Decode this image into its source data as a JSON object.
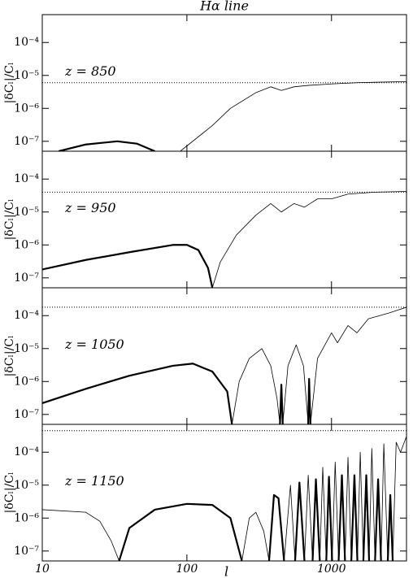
{
  "chart_data": [
    {
      "type": "line",
      "title": "Hα line",
      "annotation": "z = 850",
      "y_label": "|δCₗ|/Cₗ",
      "xlog": true,
      "ylog": true,
      "xlim": [
        10,
        3300
      ],
      "ylim": [
        5e-08,
        0.0007
      ],
      "xticks": [
        10,
        100,
        1000
      ],
      "yticks": [
        {
          "value": 1e-07,
          "label": "10⁻⁷"
        },
        {
          "value": 1e-06,
          "label": "10⁻⁶"
        },
        {
          "value": 1e-05,
          "label": "10⁻⁵"
        },
        {
          "value": 0.0001,
          "label": "10⁻⁴"
        }
      ],
      "reference": 6e-06,
      "series": [
        {
          "color": "#000",
          "width": 2.2,
          "x": [
            13,
            20,
            33,
            45,
            60
          ],
          "values": [
            5e-08,
            8e-08,
            1e-07,
            8.5e-08,
            5e-08
          ]
        },
        {
          "color": "#000",
          "width": 0.8,
          "x": [
            90,
            150,
            200,
            300,
            380,
            450,
            550,
            700,
            1000,
            1500,
            2000,
            3300
          ],
          "values": [
            5e-08,
            3e-07,
            1e-06,
            3e-06,
            4.5e-06,
            3.5e-06,
            4.5e-06,
            5e-06,
            5.5e-06,
            6e-06,
            6.2e-06,
            6.5e-06
          ]
        }
      ]
    },
    {
      "type": "line",
      "annotation": "z = 950",
      "y_label": "|δCₗ|/Cₗ",
      "xlog": true,
      "ylog": true,
      "xlim": [
        10,
        3300
      ],
      "ylim": [
        5e-08,
        0.0007
      ],
      "xticks": [
        10,
        100,
        1000
      ],
      "yticks": [
        {
          "value": 1e-07,
          "label": "10⁻⁷"
        },
        {
          "value": 1e-06,
          "label": "10⁻⁶"
        },
        {
          "value": 1e-05,
          "label": "10⁻⁵"
        },
        {
          "value": 0.0001,
          "label": "10⁻⁴"
        }
      ],
      "reference": 4e-05,
      "series": [
        {
          "color": "#000",
          "width": 2.2,
          "x": [
            10,
            20,
            40,
            80,
            100,
            120,
            140,
            150
          ],
          "values": [
            1.8e-07,
            3.5e-07,
            6e-07,
            1e-06,
            1e-06,
            7e-07,
            2e-07,
            5e-08
          ]
        },
        {
          "color": "#000",
          "width": 0.8,
          "x": [
            150,
            170,
            220,
            300,
            380,
            450,
            550,
            650,
            800,
            1000,
            1300,
            2000,
            3300
          ],
          "values": [
            5e-08,
            3e-07,
            2e-06,
            8e-06,
            1.8e-05,
            1e-05,
            1.8e-05,
            1.4e-05,
            2.5e-05,
            2.5e-05,
            3.5e-05,
            4e-05,
            4.2e-05
          ]
        }
      ]
    },
    {
      "type": "line",
      "annotation": "z = 1050",
      "y_label": "|δCₗ|/Cₗ",
      "xlog": true,
      "ylog": true,
      "xlim": [
        10,
        3300
      ],
      "ylim": [
        5e-08,
        0.0007
      ],
      "xticks": [
        10,
        100,
        1000
      ],
      "yticks": [
        {
          "value": 1e-07,
          "label": "10⁻⁷"
        },
        {
          "value": 1e-06,
          "label": "10⁻⁶"
        },
        {
          "value": 1e-05,
          "label": "10⁻⁵"
        },
        {
          "value": 0.0001,
          "label": "10⁻⁴"
        }
      ],
      "reference": 0.00018,
      "series": [
        {
          "color": "#000",
          "width": 2.2,
          "x": [
            10,
            20,
            40,
            80,
            110,
            150,
            190,
            205
          ],
          "values": [
            2.2e-07,
            6e-07,
            1.5e-06,
            3e-06,
            3.5e-06,
            2e-06,
            5e-07,
            5e-08
          ]
        },
        {
          "color": "#000",
          "width": 0.8,
          "x": [
            205,
            230,
            270,
            330,
            380,
            420,
            440
          ],
          "values": [
            5e-08,
            1e-06,
            5e-06,
            1e-05,
            3e-06,
            3e-07,
            5e-08
          ]
        },
        {
          "color": "#000",
          "width": 2.2,
          "x": [
            440,
            450,
            460
          ],
          "values": [
            5e-08,
            8e-07,
            5e-08
          ]
        },
        {
          "color": "#000",
          "width": 0.8,
          "x": [
            460,
            500,
            570,
            640,
            690
          ],
          "values": [
            5e-08,
            3e-06,
            1.3e-05,
            3e-06,
            5e-08
          ]
        },
        {
          "color": "#000",
          "width": 2.2,
          "x": [
            690,
            700,
            715
          ],
          "values": [
            5e-08,
            1.2e-06,
            5e-08
          ]
        },
        {
          "color": "#000",
          "width": 0.8,
          "x": [
            715,
            800,
            1000,
            1100,
            1300,
            1500,
            1800,
            2500,
            3300
          ],
          "values": [
            5e-08,
            5e-06,
            3e-05,
            1.5e-05,
            5e-05,
            3e-05,
            8e-05,
            0.00012,
            0.00018
          ]
        }
      ]
    },
    {
      "type": "line",
      "annotation": "z = 1150",
      "y_label": "|δCₗ|/Cₗ",
      "x_label": "l",
      "show_xtick_labels": true,
      "xlog": true,
      "ylog": true,
      "xlim": [
        10,
        3300
      ],
      "ylim": [
        5e-08,
        0.0007
      ],
      "xticks": [
        10,
        100,
        1000
      ],
      "yticks": [
        {
          "value": 1e-07,
          "label": "10⁻⁷"
        },
        {
          "value": 1e-06,
          "label": "10⁻⁶"
        },
        {
          "value": 1e-05,
          "label": "10⁻⁵"
        },
        {
          "value": 0.0001,
          "label": "10⁻⁴"
        }
      ],
      "reference": 0.00045,
      "series": [
        {
          "color": "#000",
          "width": 0.8,
          "x": [
            10,
            20,
            25,
            30,
            34
          ],
          "values": [
            1.8e-06,
            1.5e-06,
            8e-07,
            2e-07,
            5e-08
          ]
        },
        {
          "color": "#000",
          "width": 2.2,
          "x": [
            34,
            40,
            60,
            100,
            150,
            200,
            240
          ],
          "values": [
            5e-08,
            5e-07,
            1.8e-06,
            2.7e-06,
            2.5e-06,
            1e-06,
            5e-08
          ]
        },
        {
          "color": "#000",
          "width": 0.8,
          "x": [
            240,
            270,
            300,
            340,
            370
          ],
          "values": [
            5e-08,
            1e-06,
            1.5e-06,
            4e-07,
            5e-08
          ]
        },
        {
          "color": "#000",
          "width": 2.2,
          "x": [
            370,
            400,
            430,
            470
          ],
          "values": [
            5e-08,
            5e-06,
            4e-06,
            5e-08
          ]
        },
        {
          "color": "#000",
          "width": 0.8,
          "x": [
            470,
            520,
            560
          ],
          "values": [
            5e-08,
            1e-05,
            5e-08
          ]
        },
        {
          "color": "#000",
          "width": 2.2,
          "x": [
            560,
            600,
            650
          ],
          "values": [
            5e-08,
            1.2e-05,
            5e-08
          ]
        },
        {
          "color": "#000",
          "width": 0.8,
          "x": [
            650,
            690,
            740
          ],
          "values": [
            5e-08,
            2e-05,
            5e-08
          ]
        },
        {
          "color": "#000",
          "width": 2.2,
          "x": [
            740,
            780,
            830
          ],
          "values": [
            5e-08,
            1.5e-05,
            5e-08
          ]
        },
        {
          "color": "#000",
          "width": 0.8,
          "x": [
            830,
            870,
            920
          ],
          "values": [
            5e-08,
            3.5e-05,
            5e-08
          ]
        },
        {
          "color": "#000",
          "width": 2.2,
          "x": [
            920,
            960,
            1010
          ],
          "values": [
            5e-08,
            1.8e-05,
            5e-08
          ]
        },
        {
          "color": "#000",
          "width": 0.8,
          "x": [
            1010,
            1060,
            1120
          ],
          "values": [
            5e-08,
            5e-05,
            5e-08
          ]
        },
        {
          "color": "#000",
          "width": 2.2,
          "x": [
            1120,
            1180,
            1240
          ],
          "values": [
            5e-08,
            2e-05,
            5e-08
          ]
        },
        {
          "color": "#000",
          "width": 0.8,
          "x": [
            1240,
            1300,
            1370
          ],
          "values": [
            5e-08,
            7e-05,
            5e-08
          ]
        },
        {
          "color": "#000",
          "width": 2.2,
          "x": [
            1370,
            1440,
            1510
          ],
          "values": [
            5e-08,
            2e-05,
            5e-08
          ]
        },
        {
          "color": "#000",
          "width": 0.8,
          "x": [
            1510,
            1580,
            1660
          ],
          "values": [
            5e-08,
            0.0001,
            5e-08
          ]
        },
        {
          "color": "#000",
          "width": 2.2,
          "x": [
            1660,
            1740,
            1820
          ],
          "values": [
            5e-08,
            2e-05,
            5e-08
          ]
        },
        {
          "color": "#000",
          "width": 0.8,
          "x": [
            1820,
            1900,
            2000
          ],
          "values": [
            5e-08,
            0.00013,
            5e-08
          ]
        },
        {
          "color": "#000",
          "width": 2.2,
          "x": [
            2000,
            2100,
            2200
          ],
          "values": [
            5e-08,
            1.5e-05,
            5e-08
          ]
        },
        {
          "color": "#000",
          "width": 0.8,
          "x": [
            2200,
            2300,
            2450
          ],
          "values": [
            5e-08,
            0.00018,
            5e-08
          ]
        },
        {
          "color": "#000",
          "width": 2.2,
          "x": [
            2450,
            2550,
            2650
          ],
          "values": [
            5e-08,
            5e-06,
            5e-08
          ]
        },
        {
          "color": "#000",
          "width": 0.8,
          "x": [
            2650,
            2800,
            3000,
            3300
          ],
          "values": [
            5e-08,
            0.0002,
            0.0001,
            0.0003
          ]
        }
      ]
    }
  ]
}
